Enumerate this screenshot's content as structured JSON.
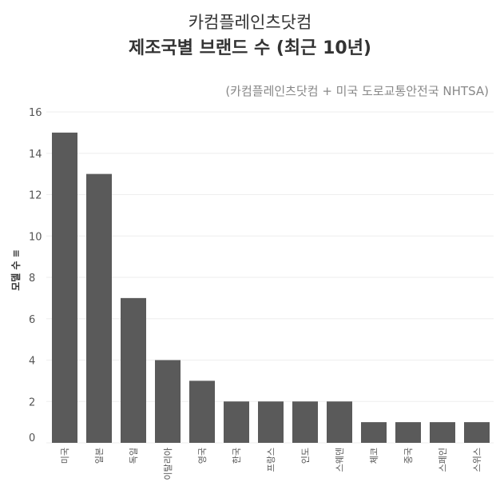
{
  "site_title": "카컴플레인츠닷컴",
  "chart_data": {
    "type": "bar",
    "title": "제조국별 브랜드 수 (최근 10년)",
    "source": "(카컴플레인츠닷컴 + 미국 도로교통안전국 NHTSA)",
    "ylabel": "모델 수 ≡",
    "xlabel": "",
    "ylim": [
      0,
      16
    ],
    "yticks": [
      0,
      2,
      4,
      6,
      8,
      10,
      12,
      14,
      16
    ],
    "grid": true,
    "categories": [
      "미국",
      "일본",
      "독일",
      "이탈리아",
      "영국",
      "한국",
      "프랑스",
      "인도",
      "스웨덴",
      "체코",
      "중국",
      "스페인",
      "스위스"
    ],
    "values": [
      15,
      13,
      7,
      4,
      3,
      2,
      2,
      2,
      2,
      1,
      1,
      1,
      1
    ],
    "bar_color": "#5a5a5a",
    "grid_color": "#eeeeee"
  }
}
